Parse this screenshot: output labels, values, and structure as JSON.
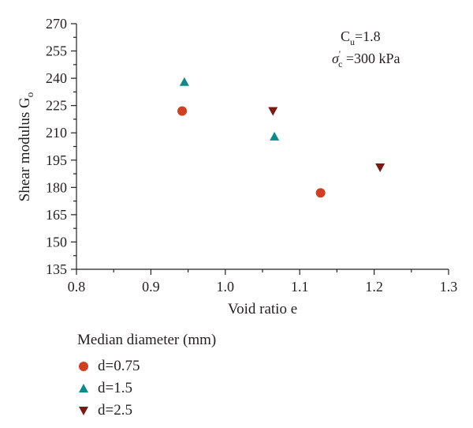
{
  "chart_data": {
    "type": "scatter",
    "xlabel": "Void ratio e",
    "ylabel": {
      "main": "Shear modulus G",
      "sub": "o"
    },
    "xlim": [
      0.8,
      1.3
    ],
    "ylim": [
      135,
      270
    ],
    "xticks": [
      0.8,
      0.9,
      1.0,
      1.1,
      1.2,
      1.3
    ],
    "xtick_labels": [
      "0.8",
      "0.9",
      "1.0",
      "1.1",
      "1.2",
      "1.3"
    ],
    "yticks": [
      135,
      150,
      165,
      180,
      195,
      210,
      225,
      240,
      255,
      270
    ],
    "grid": false,
    "annotation": {
      "line1": {
        "main": "C",
        "sub": "u",
        "rest": "=1.8"
      },
      "line2": {
        "main": "σ",
        "sup": "'",
        "sub": "c",
        "rest": " =300 kPa"
      }
    },
    "legend_title": "Median diameter (mm)",
    "legend_position": "bottom-left, below plot",
    "series": [
      {
        "name": "d=0.75",
        "marker": "circle",
        "color": "#d13f23",
        "points": [
          {
            "x": 0.942,
            "y": 222
          },
          {
            "x": 1.128,
            "y": 177
          }
        ]
      },
      {
        "name": "d=1.5",
        "marker": "triangle-up",
        "color": "#0b8a8a",
        "points": [
          {
            "x": 0.945,
            "y": 238
          },
          {
            "x": 1.066,
            "y": 208
          }
        ]
      },
      {
        "name": "d=2.5",
        "marker": "triangle-down",
        "color": "#7b1a14",
        "points": [
          {
            "x": 1.064,
            "y": 222
          },
          {
            "x": 1.208,
            "y": 191
          }
        ]
      }
    ]
  }
}
